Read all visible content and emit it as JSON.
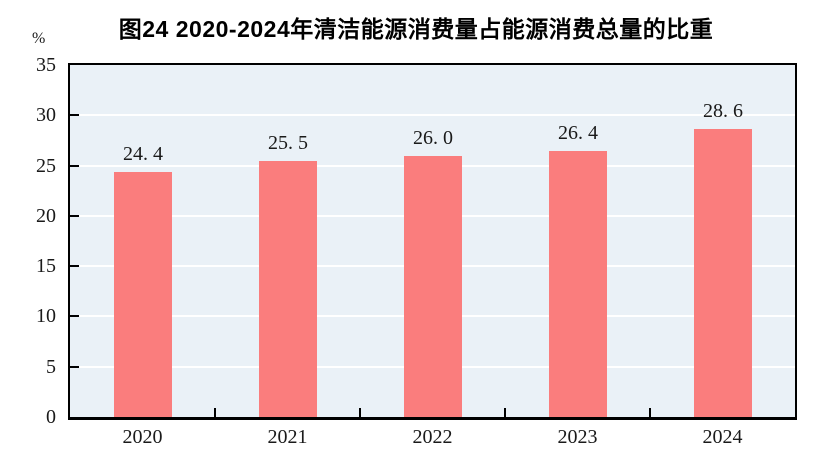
{
  "title": "图24  2020-2024年清洁能源消费量占能源消费总量的比重",
  "chart_data": {
    "type": "bar",
    "title": "图24  2020-2024年清洁能源消费量占能源消费总量的比重",
    "categories": [
      "2020",
      "2021",
      "2022",
      "2023",
      "2024"
    ],
    "values": [
      24.4,
      25.5,
      26.0,
      26.4,
      28.6
    ],
    "value_labels": [
      "24. 4",
      "25. 5",
      "26. 0",
      "26. 4",
      "28. 6"
    ],
    "xlabel": "",
    "ylabel": "%",
    "ylim": [
      0,
      35
    ],
    "yticks": [
      0,
      5,
      10,
      15,
      20,
      25,
      30,
      35
    ],
    "grid": true,
    "legend_position": "none",
    "colors": {
      "bar": "#fa7d7d",
      "plot_background": "#eaf1f7",
      "gridline": "#ffffff",
      "axis": "#000000",
      "text": "#1a1a1a"
    }
  }
}
